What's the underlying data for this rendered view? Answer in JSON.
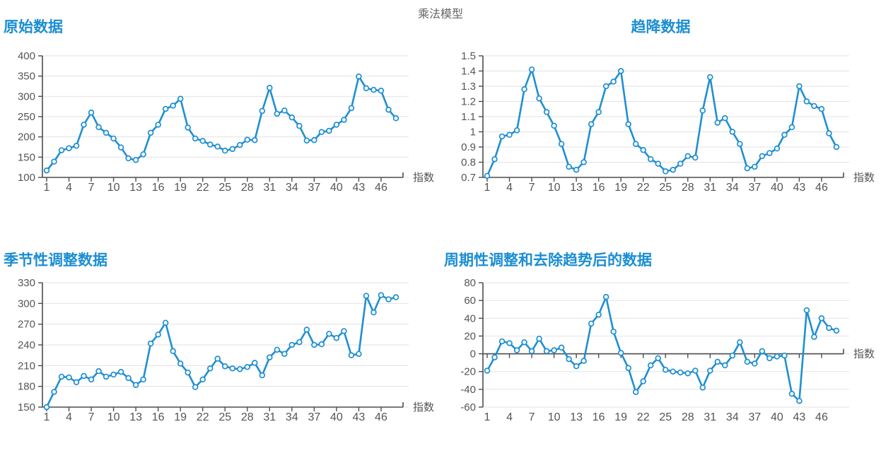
{
  "page_title": "乘法模型",
  "axis_unit_label": "指数",
  "colors": {
    "line": "#1f8fd2",
    "marker_fill": "#ffffff",
    "title_blue": "#1b8ed2",
    "axis": "#4d4d4d",
    "grid": "#e2e2e2",
    "tick_text": "#555555",
    "main_title_text": "#666666"
  },
  "x_ticks": [
    1,
    4,
    7,
    10,
    13,
    16,
    19,
    22,
    25,
    28,
    31,
    34,
    37,
    40,
    43,
    46
  ],
  "chart_data": [
    {
      "type": "line",
      "title": "原始数据",
      "title_align": "left",
      "xlabel": "指数",
      "ylim": [
        100,
        400
      ],
      "yticks": [
        100,
        150,
        200,
        250,
        300,
        350,
        400
      ],
      "ytick_labels": [
        "100",
        "150",
        "200",
        "250",
        "300",
        "350",
        "400"
      ],
      "x_axis_at": "bottom",
      "grid": true,
      "legend": "none",
      "x": [
        1,
        2,
        3,
        4,
        5,
        6,
        7,
        8,
        9,
        10,
        11,
        12,
        13,
        14,
        15,
        16,
        17,
        18,
        19,
        20,
        21,
        22,
        23,
        24,
        25,
        26,
        27,
        28,
        29,
        30,
        31,
        32,
        33,
        34,
        35,
        36,
        37,
        38,
        39,
        40,
        41,
        42,
        43,
        44,
        45,
        46,
        47,
        48
      ],
      "values": [
        117,
        139,
        167,
        172,
        178,
        230,
        260,
        224,
        210,
        196,
        174,
        147,
        143,
        157,
        210,
        230,
        269,
        277,
        294,
        223,
        196,
        190,
        181,
        176,
        166,
        170,
        180,
        193,
        192,
        264,
        321,
        257,
        265,
        248,
        227,
        191,
        192,
        212,
        215,
        230,
        242,
        271,
        349,
        320,
        316,
        314,
        267,
        246
      ]
    },
    {
      "type": "line",
      "title": "趋降数据",
      "title_align": "center",
      "xlabel": "指数",
      "ylim": [
        0.7,
        1.5
      ],
      "yticks": [
        0.7,
        0.8,
        0.9,
        1.0,
        1.1,
        1.2,
        1.3,
        1.4,
        1.5
      ],
      "ytick_labels": [
        "0.7",
        "0.8",
        "0.9",
        "1",
        "1.1",
        "1.2",
        "1.3",
        "1.4",
        "1.5"
      ],
      "x_axis_at": "bottom",
      "grid": true,
      "legend": "none",
      "x": [
        1,
        2,
        3,
        4,
        5,
        6,
        7,
        8,
        9,
        10,
        11,
        12,
        13,
        14,
        15,
        16,
        17,
        18,
        19,
        20,
        21,
        22,
        23,
        24,
        25,
        26,
        27,
        28,
        29,
        30,
        31,
        32,
        33,
        34,
        35,
        36,
        37,
        38,
        39,
        40,
        41,
        42,
        43,
        44,
        45,
        46,
        47,
        48
      ],
      "values": [
        0.71,
        0.82,
        0.97,
        0.98,
        1.01,
        1.28,
        1.41,
        1.22,
        1.13,
        1.04,
        0.92,
        0.77,
        0.75,
        0.8,
        1.05,
        1.13,
        1.3,
        1.33,
        1.4,
        1.05,
        0.92,
        0.88,
        0.82,
        0.79,
        0.74,
        0.75,
        0.79,
        0.84,
        0.83,
        1.14,
        1.36,
        1.06,
        1.09,
        1.0,
        0.92,
        0.76,
        0.77,
        0.84,
        0.86,
        0.89,
        0.98,
        1.03,
        1.3,
        1.2,
        1.17,
        1.15,
        0.99,
        0.9
      ]
    },
    {
      "type": "line",
      "title": "季节性调整数据",
      "title_align": "left",
      "xlabel": "指数",
      "ylim": [
        150,
        330
      ],
      "yticks": [
        150,
        180,
        210,
        240,
        270,
        300,
        330
      ],
      "ytick_labels": [
        "150",
        "180",
        "210",
        "240",
        "270",
        "300",
        "330"
      ],
      "x_axis_at": "bottom",
      "grid": true,
      "legend": "none",
      "x": [
        1,
        2,
        3,
        4,
        5,
        6,
        7,
        8,
        9,
        10,
        11,
        12,
        13,
        14,
        15,
        16,
        17,
        18,
        19,
        20,
        21,
        22,
        23,
        24,
        25,
        26,
        27,
        28,
        29,
        30,
        31,
        32,
        33,
        34,
        35,
        36,
        37,
        38,
        39,
        40,
        41,
        42,
        43,
        44,
        45,
        46,
        47,
        48
      ],
      "values": [
        150,
        172,
        194,
        193,
        186,
        195,
        190,
        202,
        194,
        197,
        201,
        192,
        182,
        190,
        242,
        255,
        272,
        231,
        213,
        200,
        179,
        190,
        206,
        220,
        209,
        206,
        205,
        208,
        214,
        196,
        222,
        233,
        227,
        240,
        244,
        262,
        240,
        241,
        256,
        250,
        260,
        225,
        227,
        311,
        287,
        312,
        306,
        309
      ]
    },
    {
      "type": "line",
      "title": "周期性调整和去除趋势后的数据",
      "title_align": "left",
      "xlabel": "指数",
      "ylim": [
        -60,
        80
      ],
      "yticks": [
        -60,
        -40,
        -20,
        0,
        20,
        40,
        60,
        80
      ],
      "ytick_labels": [
        "-60",
        "-40",
        "-20",
        "0",
        "20",
        "40",
        "60",
        "80"
      ],
      "x_axis_at": "zero",
      "grid": true,
      "legend": "none",
      "x": [
        1,
        2,
        3,
        4,
        5,
        6,
        7,
        8,
        9,
        10,
        11,
        12,
        13,
        14,
        15,
        16,
        17,
        18,
        19,
        20,
        21,
        22,
        23,
        24,
        25,
        26,
        27,
        28,
        29,
        30,
        31,
        32,
        33,
        34,
        35,
        36,
        37,
        38,
        39,
        40,
        41,
        42,
        43,
        44,
        45,
        46,
        47,
        48
      ],
      "values": [
        -19,
        -4,
        14,
        12,
        4,
        13,
        3,
        17,
        3,
        4,
        7,
        -6,
        -14,
        -8,
        34,
        44,
        64,
        25,
        1,
        -16,
        -43,
        -31,
        -13,
        -5,
        -18,
        -20,
        -21,
        -22,
        -19,
        -38,
        -19,
        -9,
        -13,
        -2,
        13,
        -9,
        -11,
        3,
        -5,
        -3,
        -2,
        -45,
        -53,
        49,
        19,
        40,
        29,
        26
      ]
    }
  ]
}
